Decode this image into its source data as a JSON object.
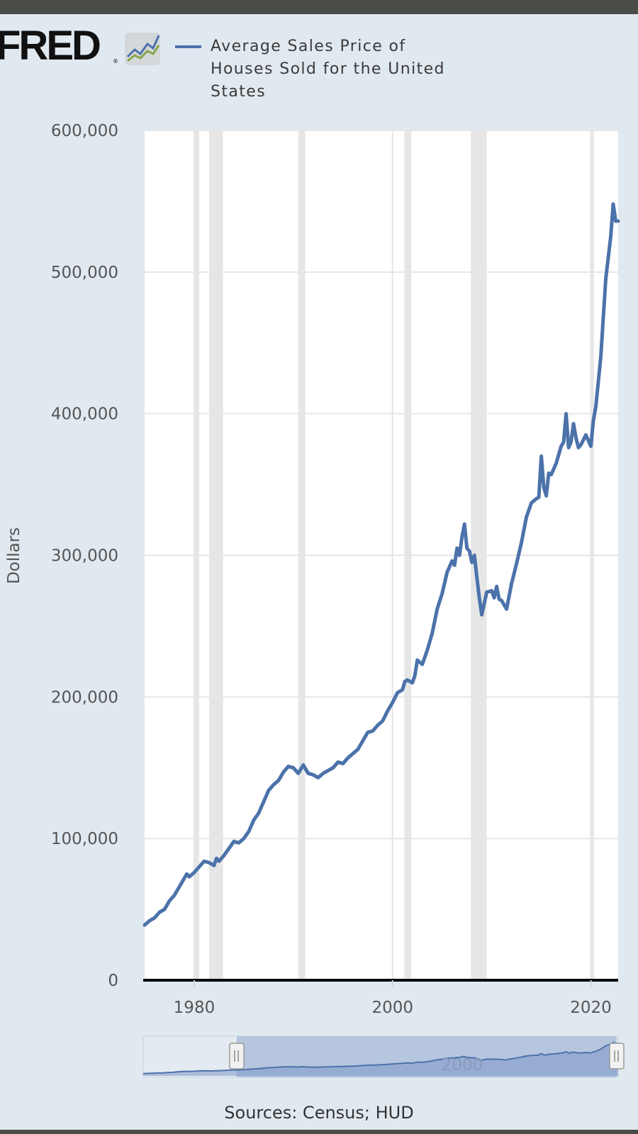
{
  "brand": {
    "logo_text": "FRED",
    "logo_mark": "®",
    "logo_icon": "fred-graph-icon"
  },
  "legend": {
    "series_name": "Average Sales Price of Houses Sold for the United States",
    "color": "#4c72aa"
  },
  "footer": {
    "source": "Sources: Census; HUD"
  },
  "chart_data": {
    "type": "line",
    "title": "",
    "xlabel": "",
    "ylabel": "Dollars",
    "xlim": [
      1975,
      2022.75
    ],
    "ylim": [
      0,
      600000
    ],
    "grid": true,
    "legend_position": "top",
    "y_ticks": [
      0,
      100000,
      200000,
      300000,
      400000,
      500000,
      600000
    ],
    "y_tick_labels": [
      "0",
      "100,000",
      "200,000",
      "300,000",
      "400,000",
      "500,000",
      "600,000"
    ],
    "x_ticks": [
      1980,
      2000,
      2020
    ],
    "x_tick_labels": [
      "1980",
      "2000",
      "2020"
    ],
    "recessions": [
      [
        1980.0,
        1980.5
      ],
      [
        1981.5,
        1982.9
      ],
      [
        1990.5,
        1991.2
      ],
      [
        2001.2,
        2001.9
      ],
      [
        2007.9,
        2009.5
      ],
      [
        2020.0,
        2020.3
      ]
    ],
    "series": [
      {
        "name": "Average Sales Price of Houses Sold for the United States",
        "color": "#4c72aa",
        "x": [
          1975.0,
          1975.5,
          1976.0,
          1976.5,
          1977.0,
          1977.5,
          1978.0,
          1978.5,
          1979.0,
          1979.25,
          1979.5,
          1980.0,
          1980.5,
          1981.0,
          1981.5,
          1982.0,
          1982.25,
          1982.5,
          1983.0,
          1983.5,
          1984.0,
          1984.5,
          1985.0,
          1985.5,
          1986.0,
          1986.5,
          1987.0,
          1987.5,
          1988.0,
          1988.5,
          1989.0,
          1989.5,
          1990.0,
          1990.5,
          1991.0,
          1991.5,
          1992.0,
          1992.5,
          1993.0,
          1993.5,
          1994.0,
          1994.5,
          1995.0,
          1995.5,
          1996.0,
          1996.5,
          1997.0,
          1997.5,
          1998.0,
          1998.5,
          1999.0,
          1999.5,
          2000.0,
          2000.5,
          2001.0,
          2001.25,
          2001.5,
          2002.0,
          2002.25,
          2002.5,
          2003.0,
          2003.5,
          2004.0,
          2004.5,
          2005.0,
          2005.5,
          2006.0,
          2006.25,
          2006.5,
          2006.75,
          2007.0,
          2007.25,
          2007.5,
          2007.75,
          2008.0,
          2008.25,
          2008.5,
          2008.75,
          2009.0,
          2009.5,
          2010.0,
          2010.25,
          2010.5,
          2010.75,
          2011.0,
          2011.5,
          2012.0,
          2012.5,
          2013.0,
          2013.5,
          2014.0,
          2014.5,
          2014.75,
          2015.0,
          2015.25,
          2015.5,
          2015.75,
          2016.0,
          2016.5,
          2017.0,
          2017.25,
          2017.5,
          2017.75,
          2018.0,
          2018.25,
          2018.5,
          2018.75,
          2019.0,
          2019.5,
          2020.0,
          2020.25,
          2020.5,
          2021.0,
          2021.5,
          2022.0,
          2022.25,
          2022.5,
          2022.75
        ],
        "y": [
          39000,
          42000,
          44000,
          48000,
          50000,
          56000,
          60000,
          66000,
          72000,
          75000,
          73000,
          76000,
          80000,
          84000,
          83000,
          81000,
          86000,
          84000,
          88000,
          93000,
          98000,
          97000,
          100000,
          105000,
          113000,
          118000,
          126000,
          134000,
          138000,
          141000,
          147000,
          151000,
          150000,
          146000,
          152000,
          146000,
          145000,
          143000,
          146000,
          148000,
          150000,
          154000,
          153000,
          157000,
          160000,
          163000,
          169000,
          175000,
          176000,
          180000,
          183000,
          190000,
          196000,
          203000,
          205000,
          211000,
          212000,
          210000,
          215000,
          226000,
          223000,
          233000,
          245000,
          262000,
          273000,
          288000,
          296000,
          293000,
          305000,
          300000,
          313000,
          322000,
          305000,
          303000,
          295000,
          300000,
          285000,
          270000,
          258000,
          274000,
          275000,
          270000,
          278000,
          269000,
          268000,
          262000,
          280000,
          294000,
          309000,
          327000,
          337000,
          340000,
          341000,
          370000,
          348000,
          342000,
          358000,
          357000,
          365000,
          377000,
          380000,
          400000,
          376000,
          380000,
          393000,
          383000,
          376000,
          378000,
          385000,
          377000,
          395000,
          405000,
          440000,
          495000,
          525000,
          548000,
          536000,
          536000
        ]
      }
    ]
  }
}
